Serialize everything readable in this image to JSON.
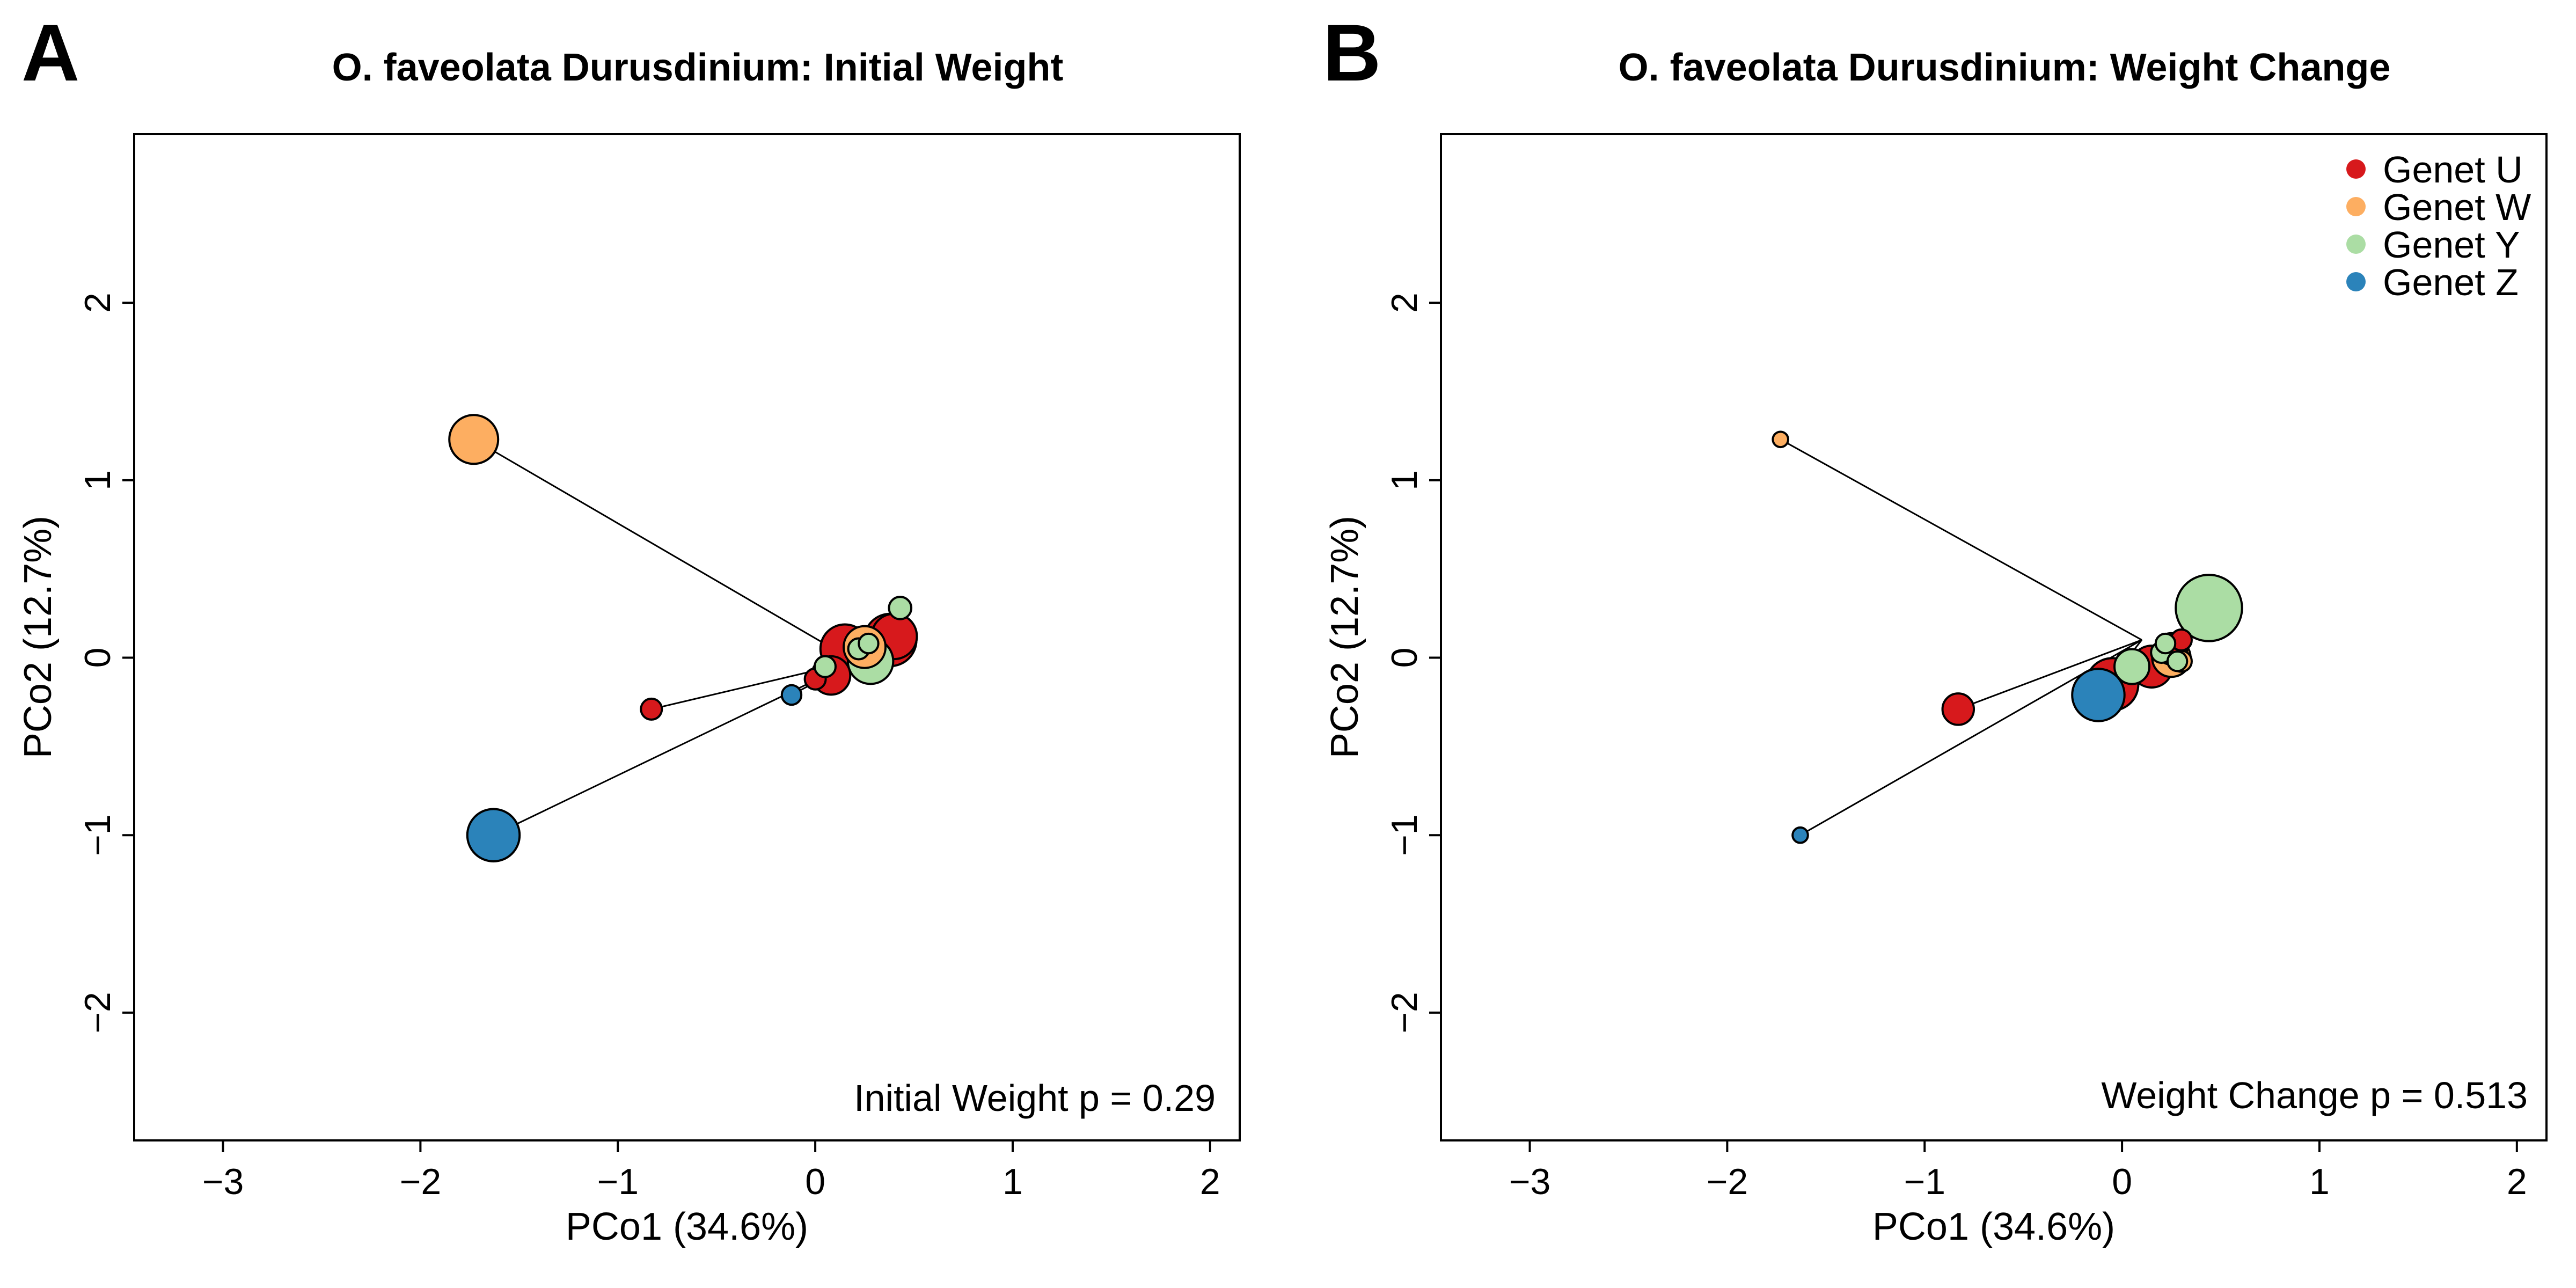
{
  "chart_data": [
    {
      "type": "scatter",
      "panel_letter": "A",
      "title": "O. faveolata Durusdinium: Initial Weight",
      "xlabel": "PCo1 (34.6%)",
      "ylabel": "PCo2 (12.7%)",
      "xlim": [
        -3.45,
        2.15
      ],
      "ylim": [
        -2.72,
        2.95
      ],
      "xticks": [
        "−3",
        "−2",
        "−1",
        "0",
        "1",
        "2"
      ],
      "yticks": [
        "−2",
        "−1",
        "0",
        "1",
        "2"
      ],
      "xtick_values": [
        -3,
        -2,
        -1,
        0,
        1,
        2
      ],
      "ytick_values": [
        -2,
        -1,
        0,
        1,
        2
      ],
      "annotation": "Initial Weight p =  0.29",
      "grid": false,
      "centroid": [
        0.2,
        -0.02
      ],
      "spokes": [
        [
          -1.73,
          1.23
        ],
        [
          -0.83,
          -0.29
        ],
        [
          -1.63,
          -1.0
        ],
        [
          -0.12,
          -0.21
        ]
      ],
      "points": [
        {
          "x": -1.73,
          "y": 1.23,
          "genet": "W",
          "size": 0.7
        },
        {
          "x": -1.63,
          "y": -1.0,
          "genet": "Z",
          "size": 0.75
        },
        {
          "x": -0.83,
          "y": -0.29,
          "genet": "U",
          "size": 0.3
        },
        {
          "x": -0.12,
          "y": -0.21,
          "genet": "Z",
          "size": 0.28
        },
        {
          "x": 0.0,
          "y": -0.12,
          "genet": "U",
          "size": 0.3
        },
        {
          "x": 0.08,
          "y": -0.1,
          "genet": "U",
          "size": 0.55
        },
        {
          "x": 0.15,
          "y": 0.05,
          "genet": "U",
          "size": 0.7
        },
        {
          "x": 0.25,
          "y": 0.06,
          "genet": "W",
          "size": 0.6
        },
        {
          "x": 0.38,
          "y": 0.1,
          "genet": "U",
          "size": 0.75
        },
        {
          "x": 0.4,
          "y": 0.12,
          "genet": "U",
          "size": 0.65
        },
        {
          "x": 0.43,
          "y": 0.28,
          "genet": "Y",
          "size": 0.32
        },
        {
          "x": 0.05,
          "y": -0.05,
          "genet": "Y",
          "size": 0.3
        },
        {
          "x": 0.28,
          "y": -0.02,
          "genet": "Y",
          "size": 0.65
        },
        {
          "x": 0.22,
          "y": 0.05,
          "genet": "Y",
          "size": 0.3
        },
        {
          "x": 0.27,
          "y": 0.08,
          "genet": "Y",
          "size": 0.28
        }
      ]
    },
    {
      "type": "scatter",
      "panel_letter": "B",
      "title": "O. faveolata Durusdinium: Weight Change",
      "xlabel": "PCo1 (34.6%)",
      "ylabel": "PCo2 (12.7%)",
      "xlim": [
        -3.45,
        2.15
      ],
      "ylim": [
        -2.72,
        2.95
      ],
      "xticks": [
        "−3",
        "−2",
        "−1",
        "0",
        "1",
        "2"
      ],
      "yticks": [
        "−2",
        "−1",
        "0",
        "1",
        "2"
      ],
      "xtick_values": [
        -3,
        -2,
        -1,
        0,
        1,
        2
      ],
      "ytick_values": [
        -2,
        -1,
        0,
        1,
        2
      ],
      "annotation": "Weight Change p =  0.513",
      "grid": false,
      "legend_position": "top-right",
      "legend": [
        {
          "label": "Genet U",
          "color": "#d7191c"
        },
        {
          "label": "Genet W",
          "color": "#fdae61"
        },
        {
          "label": "Genet Y",
          "color": "#abdda4"
        },
        {
          "label": "Genet Z",
          "color": "#2b83ba"
        }
      ],
      "centroid": [
        0.1,
        0.1
      ],
      "spokes": [
        [
          -1.73,
          1.23
        ],
        [
          -0.83,
          -0.29
        ],
        [
          -1.63,
          -1.0
        ],
        [
          -0.12,
          -0.21
        ]
      ],
      "points": [
        {
          "x": -1.73,
          "y": 1.23,
          "genet": "W",
          "size": 0.22
        },
        {
          "x": -1.63,
          "y": -1.0,
          "genet": "Z",
          "size": 0.22
        },
        {
          "x": -0.83,
          "y": -0.29,
          "genet": "U",
          "size": 0.45
        },
        {
          "x": -0.05,
          "y": -0.15,
          "genet": "U",
          "size": 0.75
        },
        {
          "x": 0.15,
          "y": -0.05,
          "genet": "U",
          "size": 0.6
        },
        {
          "x": 0.25,
          "y": 0.05,
          "genet": "U",
          "size": 0.45
        },
        {
          "x": 0.3,
          "y": 0.1,
          "genet": "U",
          "size": 0.3
        },
        {
          "x": 0.25,
          "y": 0.0,
          "genet": "W",
          "size": 0.55
        },
        {
          "x": 0.3,
          "y": -0.02,
          "genet": "W",
          "size": 0.3
        },
        {
          "x": 0.2,
          "y": 0.03,
          "genet": "Y",
          "size": 0.3
        },
        {
          "x": 0.28,
          "y": -0.02,
          "genet": "Y",
          "size": 0.28
        },
        {
          "x": 0.22,
          "y": 0.08,
          "genet": "Y",
          "size": 0.28
        },
        {
          "x": 0.05,
          "y": -0.05,
          "genet": "Y",
          "size": 0.5
        },
        {
          "x": 0.44,
          "y": 0.28,
          "genet": "Y",
          "size": 0.95
        },
        {
          "x": -0.12,
          "y": -0.21,
          "genet": "Z",
          "size": 0.75
        }
      ]
    }
  ],
  "genet_colors": {
    "U": "#d7191c",
    "W": "#fdae61",
    "Y": "#abdda4",
    "Z": "#2b83ba"
  }
}
